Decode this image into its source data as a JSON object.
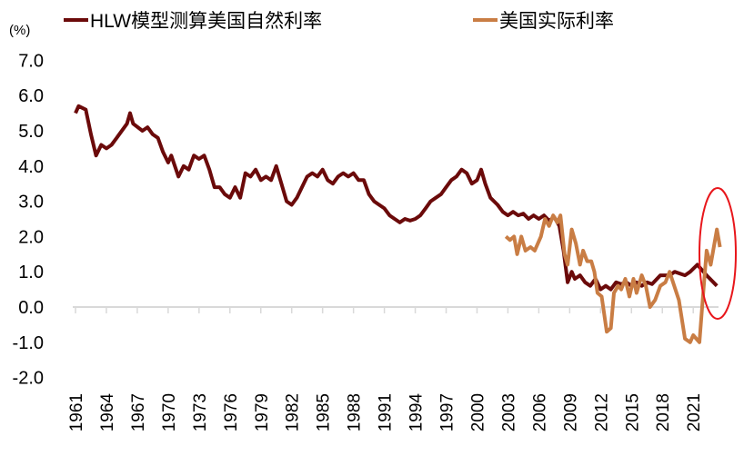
{
  "chart_data": {
    "type": "line",
    "unit_label": "(%)",
    "ylim": [
      -2.0,
      7.0
    ],
    "yticks": [
      "7.0",
      "6.0",
      "5.0",
      "4.0",
      "3.0",
      "2.0",
      "1.0",
      "0.0",
      "-1.0",
      "-2.0"
    ],
    "xticks": [
      "1961",
      "1964",
      "1967",
      "1970",
      "1973",
      "1976",
      "1979",
      "1982",
      "1985",
      "1988",
      "1991",
      "1994",
      "1997",
      "2000",
      "2003",
      "2006",
      "2009",
      "2012",
      "2015",
      "2018",
      "2021"
    ],
    "grid": false,
    "legend": "top",
    "annotation": "red ellipse highlighting 2021-2023",
    "series": [
      {
        "name": "HLW模型测算美国自然利率",
        "color": "#6b0a0a",
        "x": [
          1961,
          1961.3,
          1962,
          1962.5,
          1963,
          1963.5,
          1964,
          1964.5,
          1965,
          1966,
          1966.3,
          1966.6,
          1967.5,
          1968,
          1968.5,
          1969,
          1969.5,
          1970,
          1970.3,
          1971,
          1971.5,
          1972,
          1972.5,
          1973,
          1973.5,
          1974,
          1974.5,
          1975,
          1975.5,
          1976,
          1976.5,
          1977,
          1977.5,
          1978,
          1978.5,
          1979,
          1979.5,
          1980,
          1980.5,
          1981,
          1981.5,
          1982,
          1982.5,
          1983,
          1983.5,
          1984,
          1984.5,
          1985,
          1985.5,
          1986,
          1986.5,
          1987,
          1987.5,
          1988,
          1988.5,
          1989,
          1989.5,
          1990,
          1990.5,
          1991,
          1991.5,
          1992,
          1992.5,
          1993,
          1993.5,
          1994,
          1994.5,
          1995,
          1995.5,
          1996,
          1996.5,
          1997,
          1997.5,
          1998,
          1998.5,
          1999,
          1999.5,
          2000,
          2000.4,
          2000.8,
          2001.3,
          2002,
          2002.5,
          2003,
          2003.5,
          2004,
          2004.5,
          2005,
          2005.5,
          2006,
          2006.5,
          2007,
          2007.5,
          2008,
          2008.4,
          2008.8,
          2009.2,
          2009.5,
          2010,
          2010.5,
          2011,
          2011.5,
          2012,
          2012.5,
          2013,
          2013.5,
          2014,
          2014.5,
          2015,
          2015.5,
          2016,
          2016.5,
          2017,
          2017.8,
          2018.7,
          2019.2,
          2020.2,
          2020.7,
          2021.4,
          2022.3,
          2023.3
        ],
        "y": [
          5.5,
          5.7,
          5.6,
          4.9,
          4.3,
          4.6,
          4.5,
          4.6,
          4.8,
          5.2,
          5.5,
          5.2,
          5.0,
          5.1,
          4.9,
          4.8,
          4.4,
          4.1,
          4.3,
          3.7,
          4.0,
          3.9,
          4.3,
          4.2,
          4.3,
          3.9,
          3.4,
          3.4,
          3.2,
          3.1,
          3.4,
          3.1,
          3.8,
          3.7,
          3.9,
          3.6,
          3.7,
          3.6,
          4.0,
          3.5,
          3.0,
          2.9,
          3.1,
          3.4,
          3.7,
          3.8,
          3.7,
          3.9,
          3.6,
          3.5,
          3.7,
          3.8,
          3.7,
          3.8,
          3.6,
          3.6,
          3.2,
          3.0,
          2.9,
          2.8,
          2.6,
          2.5,
          2.4,
          2.5,
          2.45,
          2.5,
          2.6,
          2.8,
          3.0,
          3.1,
          3.2,
          3.4,
          3.6,
          3.7,
          3.9,
          3.8,
          3.5,
          3.6,
          3.9,
          3.5,
          3.1,
          2.9,
          2.7,
          2.6,
          2.7,
          2.6,
          2.65,
          2.5,
          2.6,
          2.5,
          2.6,
          2.45,
          2.55,
          2.3,
          1.6,
          0.7,
          1.0,
          0.8,
          0.9,
          0.7,
          0.6,
          0.8,
          0.5,
          0.6,
          0.5,
          0.7,
          0.65,
          0.7,
          0.6,
          0.7,
          0.6,
          0.7,
          0.65,
          0.9,
          0.9,
          1.0,
          0.9,
          1.0,
          1.2,
          0.9,
          0.6
        ]
      },
      {
        "name": "美国实际利率",
        "color": "#c97d44",
        "x": [
          2002.8,
          2003.2,
          2003.6,
          2003.9,
          2004.3,
          2004.7,
          2005.2,
          2005.6,
          2006.2,
          2006.6,
          2007.0,
          2007.4,
          2007.8,
          2008.1,
          2008.5,
          2008.8,
          2009.2,
          2009.6,
          2010.0,
          2010.3,
          2010.7,
          2011.1,
          2011.4,
          2011.7,
          2012.1,
          2012.6,
          2013.0,
          2013.3,
          2013.7,
          2014.0,
          2014.4,
          2014.8,
          2015.2,
          2015.5,
          2016.0,
          2016.4,
          2016.8,
          2017.3,
          2017.8,
          2018.3,
          2018.7,
          2019.6,
          2020.2,
          2020.7,
          2021.0,
          2021.6,
          2022.0,
          2022.3,
          2022.7,
          2023.3,
          2023.6
        ],
        "y": [
          2.0,
          1.9,
          2.0,
          1.5,
          2.0,
          1.6,
          1.7,
          1.6,
          2.0,
          2.5,
          2.3,
          2.6,
          2.4,
          2.6,
          1.5,
          1.2,
          2.2,
          1.8,
          1.2,
          1.6,
          1.3,
          1.3,
          1.0,
          0.4,
          0.3,
          -0.7,
          -0.6,
          0.4,
          0.6,
          0.5,
          0.8,
          0.3,
          0.8,
          0.4,
          0.9,
          0.6,
          0.0,
          0.2,
          0.6,
          0.7,
          1.0,
          0.2,
          -0.9,
          -1.0,
          -0.8,
          -1.0,
          0.5,
          1.6,
          1.2,
          2.2,
          1.7
        ]
      }
    ]
  }
}
